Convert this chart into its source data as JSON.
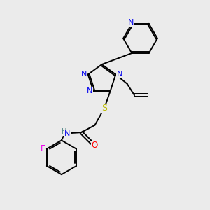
{
  "bg_color": "#ebebeb",
  "atom_colors": {
    "N": "#0000ee",
    "S": "#bbbb00",
    "O": "#ff0000",
    "F": "#ee00ee",
    "C": "#000000",
    "H": "#558888"
  },
  "bond_color": "#000000",
  "lw": 1.4,
  "fs": 7.5
}
